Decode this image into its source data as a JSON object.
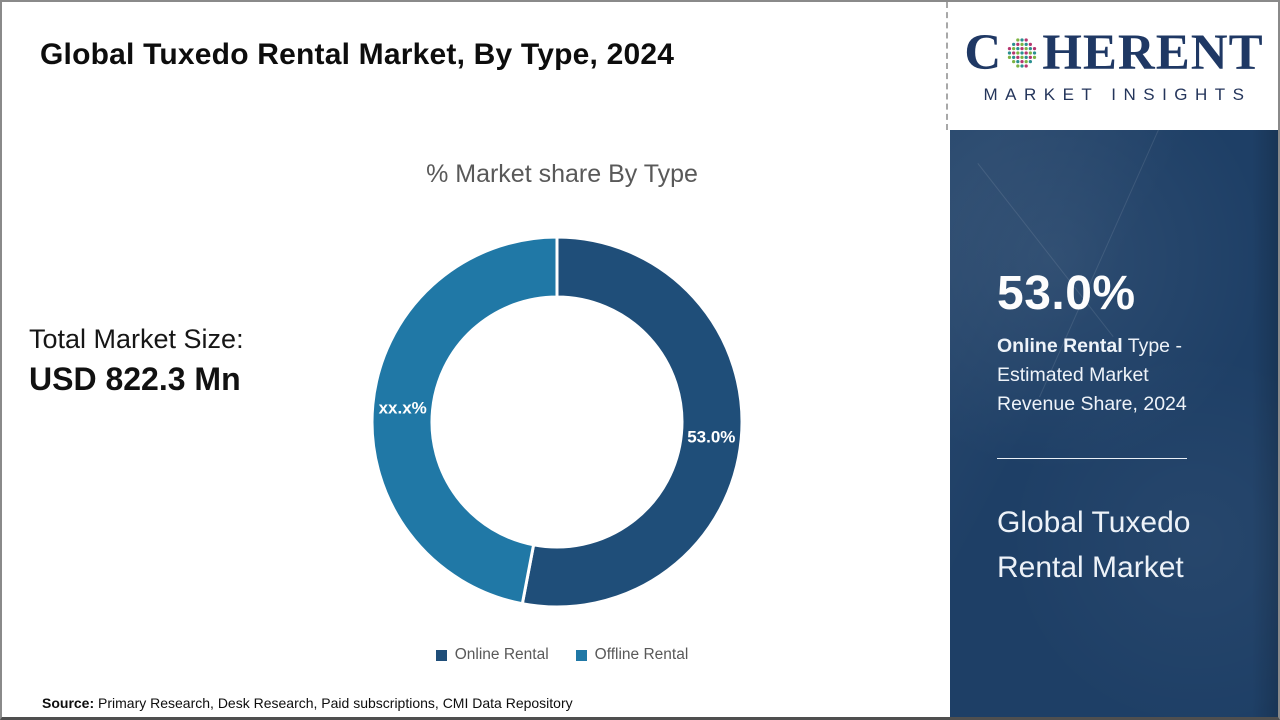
{
  "page": {
    "title": "Global Tuxedo Rental Market, By Type, 2024"
  },
  "brand": {
    "prefix": "C",
    "suffix": "HERENT",
    "tagline": "MARKET INSIGHTS",
    "navy": "#1F3864",
    "globe_icon": "dotted-globe",
    "globe_palette": [
      "#2a8f8f",
      "#7cb342",
      "#b5366f"
    ]
  },
  "left_stats": {
    "label": "Total Market Size:",
    "value": "USD 822.3 Mn"
  },
  "chart_data": {
    "type": "pie",
    "donut": true,
    "title": "% Market share By Type",
    "categories": [
      "Online Rental",
      "Offline Rental"
    ],
    "values": [
      53.0,
      47.0
    ],
    "display_labels": [
      "53.0%",
      "xx.x%"
    ],
    "colors": [
      "#1F4E79",
      "#2078A6"
    ],
    "start_angle_deg": 0,
    "direction": "clockwise",
    "legend_position": "bottom",
    "slice_divider_color": "#ffffff"
  },
  "sidebar": {
    "bg": "#1E3F66",
    "stat_value": "53.0%",
    "stat_desc_line1_bold": "Online Rental",
    "stat_desc_line1_rest": " Type -",
    "stat_desc_line2": "Estimated Market",
    "stat_desc_line3": "Revenue Share, 2024",
    "panel_title_line1": "Global Tuxedo",
    "panel_title_line2": "Rental Market"
  },
  "source": {
    "label": "Source:",
    "text": " Primary Research, Desk Research, Paid subscriptions, CMI Data Repository"
  }
}
